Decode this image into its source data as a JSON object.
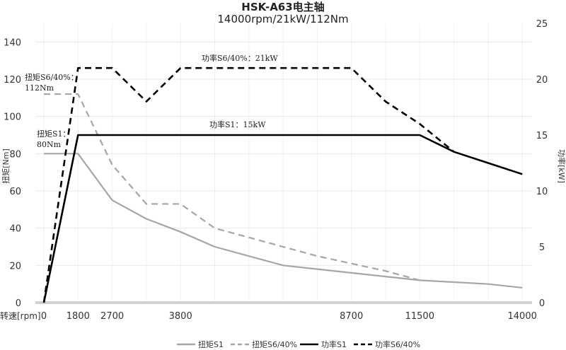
{
  "chart_data": {
    "type": "line",
    "title": "HSK-A63电主轴",
    "subtitle": "14000rpm/21kW/112Nm",
    "xlabel": "转速[rpm]",
    "ylabel": "扭矩[Nm]",
    "y2label": "功率[kW]",
    "x_categories": [
      "0",
      "1800",
      "2700",
      "",
      "3800",
      "",
      "",
      "",
      "",
      "8700",
      "",
      "11500",
      "",
      "",
      "14000"
    ],
    "ylim": [
      0,
      150
    ],
    "yticks": [
      0,
      20,
      40,
      60,
      80,
      100,
      120,
      140
    ],
    "y2lim": [
      0,
      25
    ],
    "y2ticks": [
      0,
      5,
      10,
      15,
      20,
      25
    ],
    "grid": true,
    "legend_position": "bottom",
    "series": [
      {
        "name": "扭矩S1",
        "axis": "left",
        "color": "#a6a6a6",
        "dash": false,
        "values": [
          80,
          80,
          55,
          45,
          38,
          30,
          25,
          20,
          18,
          16,
          14,
          12,
          11,
          10,
          8
        ]
      },
      {
        "name": "扭矩S6/40%",
        "axis": "left",
        "color": "#a6a6a6",
        "dash": true,
        "values": [
          112,
          112,
          74,
          53,
          53,
          40,
          35,
          30,
          25,
          21,
          17,
          12,
          null,
          null,
          null
        ]
      },
      {
        "name": "功率S1",
        "axis": "right",
        "color": "#000000",
        "dash": false,
        "values": [
          0,
          15,
          15,
          15,
          15,
          15,
          15,
          15,
          15,
          15,
          15,
          15,
          13.5,
          12.5,
          11.5
        ]
      },
      {
        "name": "功率S6/40%",
        "axis": "right",
        "color": "#000000",
        "dash": true,
        "values": [
          0,
          21,
          21,
          18,
          21,
          21,
          21,
          21,
          21,
          21,
          18,
          16,
          13.5,
          null,
          null
        ]
      }
    ],
    "annotations": {
      "power_s6": "功率S6/40%：21kW",
      "power_s1": "功率S1：15kW",
      "torque_s6_a": "扭矩S6/40%：",
      "torque_s6_b": "112Nm",
      "torque_s1_a": "扭矩S1：",
      "torque_s1_b": "80Nm"
    }
  }
}
